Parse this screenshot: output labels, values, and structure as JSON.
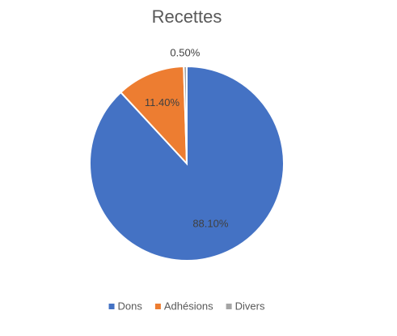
{
  "chart_data": {
    "type": "pie",
    "title": "Recettes",
    "categories": [
      "Dons",
      "Adhésions",
      "Divers"
    ],
    "values": [
      88.1,
      11.4,
      0.5
    ],
    "value_labels": [
      "88.10%",
      "11.40%",
      "0.50%"
    ],
    "colors": [
      "#4472c4",
      "#ed7d31",
      "#a5a5a5"
    ],
    "legend": "bottom"
  }
}
